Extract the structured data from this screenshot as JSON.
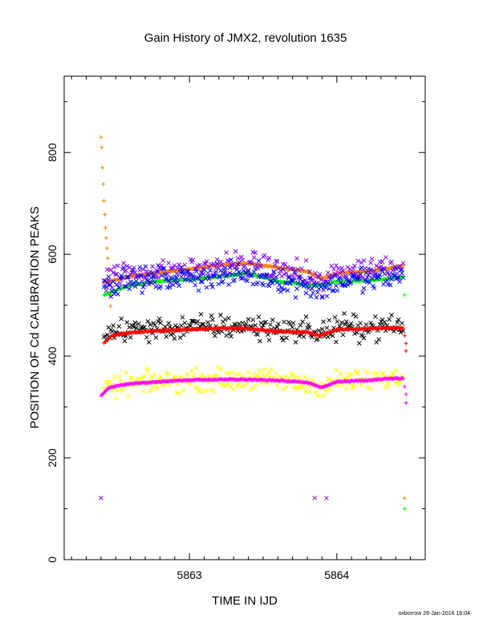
{
  "chart_data": {
    "type": "scatter",
    "title": "Gain History of JMX2, revolution 1635",
    "xlabel": "TIME IN IJD",
    "ylabel": "POSITION OF Cd CALIBRATION PEAKS",
    "xlim": [
      5862.15,
      5864.6
    ],
    "ylim": [
      0,
      950
    ],
    "xticks": [
      5863,
      5864
    ],
    "yticks": [
      0,
      200,
      400,
      600,
      800
    ],
    "grid": false,
    "footer": "oxborrow 26-Jan-2016 16:04",
    "series": [
      {
        "color": "#ff8000",
        "marker": "plus",
        "baseline": [
          [
            5862.42,
            545
          ],
          [
            5862.6,
            556
          ],
          [
            5862.8,
            564
          ],
          [
            5863.0,
            571
          ],
          [
            5863.2,
            579
          ],
          [
            5863.4,
            582
          ],
          [
            5863.6,
            574
          ],
          [
            5863.8,
            566
          ],
          [
            5863.9,
            552
          ],
          [
            5864.0,
            563
          ],
          [
            5864.2,
            566
          ],
          [
            5864.35,
            572
          ],
          [
            5864.45,
            578
          ]
        ],
        "spread": 2,
        "extra_points": [
          [
            5862.4,
            830
          ],
          [
            5862.405,
            810
          ],
          [
            5862.41,
            770
          ],
          [
            5862.415,
            738
          ],
          [
            5862.42,
            705
          ],
          [
            5862.425,
            678
          ],
          [
            5862.43,
            652
          ],
          [
            5862.435,
            632
          ],
          [
            5862.44,
            612
          ],
          [
            5862.445,
            592
          ],
          [
            5862.45,
            570
          ],
          [
            5862.455,
            548
          ],
          [
            5862.46,
            520
          ],
          [
            5862.465,
            498
          ],
          [
            5864.46,
            121
          ]
        ]
      },
      {
        "color": "#00ff00",
        "marker": "plus",
        "baseline": [
          [
            5862.42,
            520
          ],
          [
            5862.6,
            540
          ],
          [
            5862.8,
            547
          ],
          [
            5863.0,
            551
          ],
          [
            5863.2,
            556
          ],
          [
            5863.4,
            562
          ],
          [
            5863.6,
            547
          ],
          [
            5863.8,
            540
          ],
          [
            5863.9,
            539
          ],
          [
            5864.0,
            547
          ],
          [
            5864.2,
            548
          ],
          [
            5864.35,
            552
          ],
          [
            5864.45,
            556
          ]
        ],
        "spread": 2,
        "extra_points": [
          [
            5864.46,
            520
          ],
          [
            5864.46,
            100
          ]
        ]
      },
      {
        "color": "#8000ff",
        "marker": "x",
        "baseline": [
          [
            5862.42,
            555
          ],
          [
            5862.6,
            562
          ],
          [
            5862.8,
            565
          ],
          [
            5863.0,
            568
          ],
          [
            5863.2,
            575
          ],
          [
            5863.4,
            580
          ],
          [
            5863.6,
            570
          ],
          [
            5863.8,
            556
          ],
          [
            5863.9,
            540
          ],
          [
            5864.0,
            565
          ],
          [
            5864.2,
            570
          ],
          [
            5864.35,
            575
          ],
          [
            5864.45,
            580
          ]
        ],
        "spread": 22,
        "extra_points": [
          [
            5862.4,
            121
          ],
          [
            5863.85,
            121
          ],
          [
            5863.93,
            121
          ]
        ]
      },
      {
        "color": "#0000ff",
        "marker": "x",
        "baseline": [
          [
            5862.42,
            540
          ],
          [
            5862.6,
            548
          ],
          [
            5862.8,
            552
          ],
          [
            5863.0,
            555
          ],
          [
            5863.2,
            558
          ],
          [
            5863.4,
            560
          ],
          [
            5863.6,
            550
          ],
          [
            5863.8,
            540
          ],
          [
            5863.9,
            530
          ],
          [
            5864.0,
            545
          ],
          [
            5864.2,
            550
          ],
          [
            5864.35,
            553
          ],
          [
            5864.45,
            556
          ]
        ],
        "spread": 20,
        "extra_points": []
      },
      {
        "color": "#000000",
        "marker": "x",
        "baseline": [
          [
            5862.42,
            445
          ],
          [
            5862.6,
            452
          ],
          [
            5862.8,
            454
          ],
          [
            5863.0,
            456
          ],
          [
            5863.2,
            458
          ],
          [
            5863.4,
            458
          ],
          [
            5863.6,
            453
          ],
          [
            5863.8,
            450
          ],
          [
            5863.9,
            445
          ],
          [
            5864.0,
            456
          ],
          [
            5864.2,
            456
          ],
          [
            5864.35,
            458
          ],
          [
            5864.45,
            458
          ]
        ],
        "spread": 20,
        "extra_points": []
      },
      {
        "color": "#ff0000",
        "marker": "plus",
        "baseline": [
          [
            5862.42,
            425
          ],
          [
            5862.47,
            440
          ],
          [
            5862.6,
            446
          ],
          [
            5862.8,
            450
          ],
          [
            5863.0,
            452
          ],
          [
            5863.2,
            455
          ],
          [
            5863.4,
            454
          ],
          [
            5863.6,
            448
          ],
          [
            5863.8,
            447
          ],
          [
            5863.88,
            440
          ],
          [
            5864.0,
            452
          ],
          [
            5864.2,
            454
          ],
          [
            5864.35,
            455
          ],
          [
            5864.45,
            455
          ]
        ],
        "spread": 2,
        "extra_points": [
          [
            5864.46,
            440
          ],
          [
            5864.47,
            425
          ],
          [
            5864.47,
            410
          ]
        ]
      },
      {
        "color": "#ffff00",
        "marker": "x",
        "baseline": [
          [
            5862.42,
            335
          ],
          [
            5862.6,
            345
          ],
          [
            5862.8,
            350
          ],
          [
            5863.0,
            352
          ],
          [
            5863.2,
            354
          ],
          [
            5863.4,
            355
          ],
          [
            5863.6,
            352
          ],
          [
            5863.8,
            345
          ],
          [
            5863.9,
            340
          ],
          [
            5864.0,
            350
          ],
          [
            5864.2,
            352
          ],
          [
            5864.35,
            355
          ],
          [
            5864.45,
            355
          ]
        ],
        "spread": 18,
        "extra_points": []
      },
      {
        "color": "#ff00ff",
        "marker": "plus",
        "baseline": [
          [
            5862.4,
            322
          ],
          [
            5862.45,
            338
          ],
          [
            5862.6,
            346
          ],
          [
            5862.8,
            350
          ],
          [
            5863.0,
            353
          ],
          [
            5863.2,
            354
          ],
          [
            5863.4,
            354
          ],
          [
            5863.6,
            352
          ],
          [
            5863.8,
            348
          ],
          [
            5863.9,
            338
          ],
          [
            5864.0,
            350
          ],
          [
            5864.2,
            352
          ],
          [
            5864.35,
            356
          ],
          [
            5864.45,
            356
          ]
        ],
        "spread": 2,
        "extra_points": [
          [
            5864.46,
            340
          ],
          [
            5864.47,
            325
          ],
          [
            5864.47,
            308
          ]
        ]
      }
    ]
  }
}
